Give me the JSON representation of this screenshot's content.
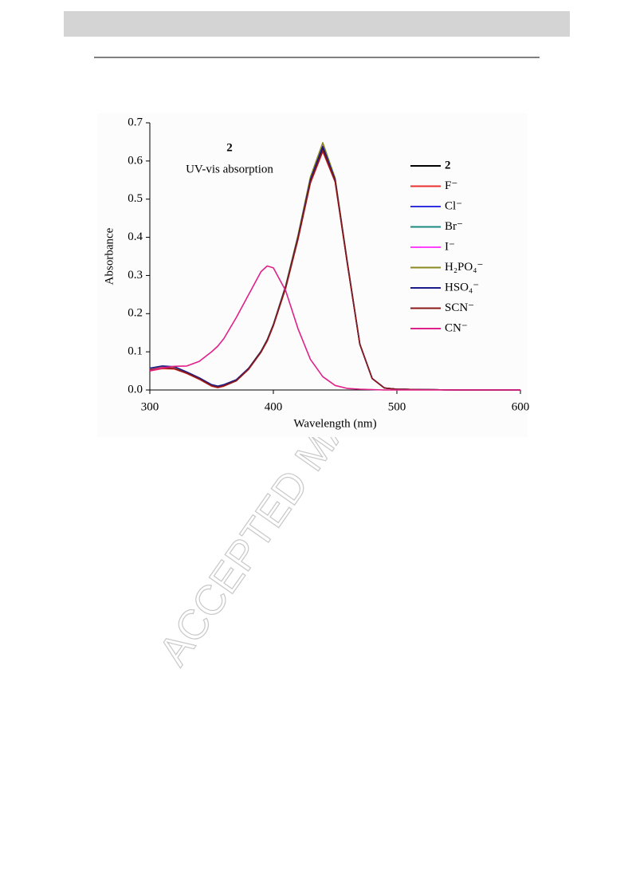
{
  "watermark": "ACCEPTED MANUSCRIPT",
  "chart_data": {
    "type": "line",
    "annotations": [
      "2",
      "UV-vis absorption"
    ],
    "xlabel": "Wavelength (nm)",
    "ylabel": "Absorbance",
    "x": [
      300,
      310,
      320,
      330,
      340,
      350,
      355,
      360,
      370,
      380,
      390,
      395,
      400,
      410,
      420,
      430,
      440,
      450,
      460,
      470,
      480,
      490,
      500,
      520,
      550,
      600
    ],
    "xlim": [
      300,
      600
    ],
    "xticks": [
      300,
      400,
      500,
      600
    ],
    "ylim": [
      0,
      0.7
    ],
    "yticks": [
      {
        "value": 0,
        "label": "0.0"
      },
      0.1,
      0.2,
      0.3,
      0.4,
      0.5,
      0.6,
      0.7
    ],
    "series": [
      {
        "name": "2",
        "color": "#000000",
        "values": [
          0.055,
          0.06,
          0.058,
          0.045,
          0.03,
          0.012,
          0.008,
          0.012,
          0.025,
          0.055,
          0.1,
          0.13,
          0.17,
          0.27,
          0.4,
          0.55,
          0.635,
          0.55,
          0.33,
          0.12,
          0.03,
          0.005,
          0.002,
          0.001,
          0,
          0
        ]
      },
      {
        "name": "F⁻",
        "color": "#e8312f",
        "values": [
          0.05,
          0.056,
          0.055,
          0.043,
          0.028,
          0.01,
          0.006,
          0.01,
          0.024,
          0.054,
          0.099,
          0.128,
          0.168,
          0.267,
          0.395,
          0.542,
          0.625,
          0.545,
          0.328,
          0.12,
          0.03,
          0.005,
          0.002,
          0.001,
          0,
          0
        ]
      },
      {
        "name": "Cl⁻",
        "color": "#3030e0",
        "values": [
          0.056,
          0.062,
          0.06,
          0.046,
          0.031,
          0.013,
          0.009,
          0.013,
          0.026,
          0.056,
          0.101,
          0.131,
          0.171,
          0.272,
          0.402,
          0.553,
          0.64,
          0.552,
          0.331,
          0.12,
          0.03,
          0.005,
          0.002,
          0.001,
          0,
          0
        ]
      },
      {
        "name": "Br⁻",
        "color": "#1a8a80",
        "values": [
          0.055,
          0.061,
          0.059,
          0.045,
          0.03,
          0.012,
          0.008,
          0.012,
          0.025,
          0.056,
          0.101,
          0.131,
          0.171,
          0.273,
          0.404,
          0.556,
          0.645,
          0.553,
          0.332,
          0.12,
          0.03,
          0.005,
          0.002,
          0.001,
          0,
          0
        ]
      },
      {
        "name": "I⁻",
        "color": "#ff40ff",
        "values": [
          0.054,
          0.06,
          0.058,
          0.045,
          0.03,
          0.012,
          0.008,
          0.012,
          0.025,
          0.055,
          0.1,
          0.13,
          0.17,
          0.271,
          0.402,
          0.553,
          0.64,
          0.551,
          0.331,
          0.12,
          0.03,
          0.005,
          0.002,
          0.001,
          0,
          0
        ]
      },
      {
        "name": "H₂PO₄⁻",
        "color": "#8a8a20",
        "values": [
          0.056,
          0.062,
          0.06,
          0.046,
          0.031,
          0.013,
          0.009,
          0.013,
          0.026,
          0.057,
          0.102,
          0.132,
          0.172,
          0.274,
          0.406,
          0.558,
          0.648,
          0.555,
          0.333,
          0.121,
          0.03,
          0.005,
          0.002,
          0.001,
          0,
          0
        ]
      },
      {
        "name": "HSO₄⁻",
        "color": "#1a1a8a",
        "values": [
          0.057,
          0.063,
          0.061,
          0.047,
          0.032,
          0.014,
          0.01,
          0.014,
          0.027,
          0.057,
          0.101,
          0.131,
          0.171,
          0.271,
          0.401,
          0.551,
          0.638,
          0.551,
          0.331,
          0.12,
          0.03,
          0.005,
          0.002,
          0.001,
          0,
          0
        ]
      },
      {
        "name": "SCN⁻",
        "color": "#8a1a1a",
        "values": [
          0.052,
          0.058,
          0.056,
          0.044,
          0.029,
          0.011,
          0.007,
          0.011,
          0.024,
          0.055,
          0.099,
          0.129,
          0.169,
          0.268,
          0.397,
          0.545,
          0.628,
          0.547,
          0.329,
          0.12,
          0.03,
          0.005,
          0.002,
          0.001,
          0,
          0
        ]
      },
      {
        "name": "CN⁻",
        "color": "#e0208a",
        "values": [
          0.05,
          0.058,
          0.062,
          0.063,
          0.075,
          0.1,
          0.115,
          0.135,
          0.19,
          0.25,
          0.31,
          0.325,
          0.32,
          0.26,
          0.16,
          0.08,
          0.035,
          0.012,
          0.004,
          0.002,
          0.001,
          0,
          0,
          0,
          0,
          0
        ]
      }
    ]
  }
}
